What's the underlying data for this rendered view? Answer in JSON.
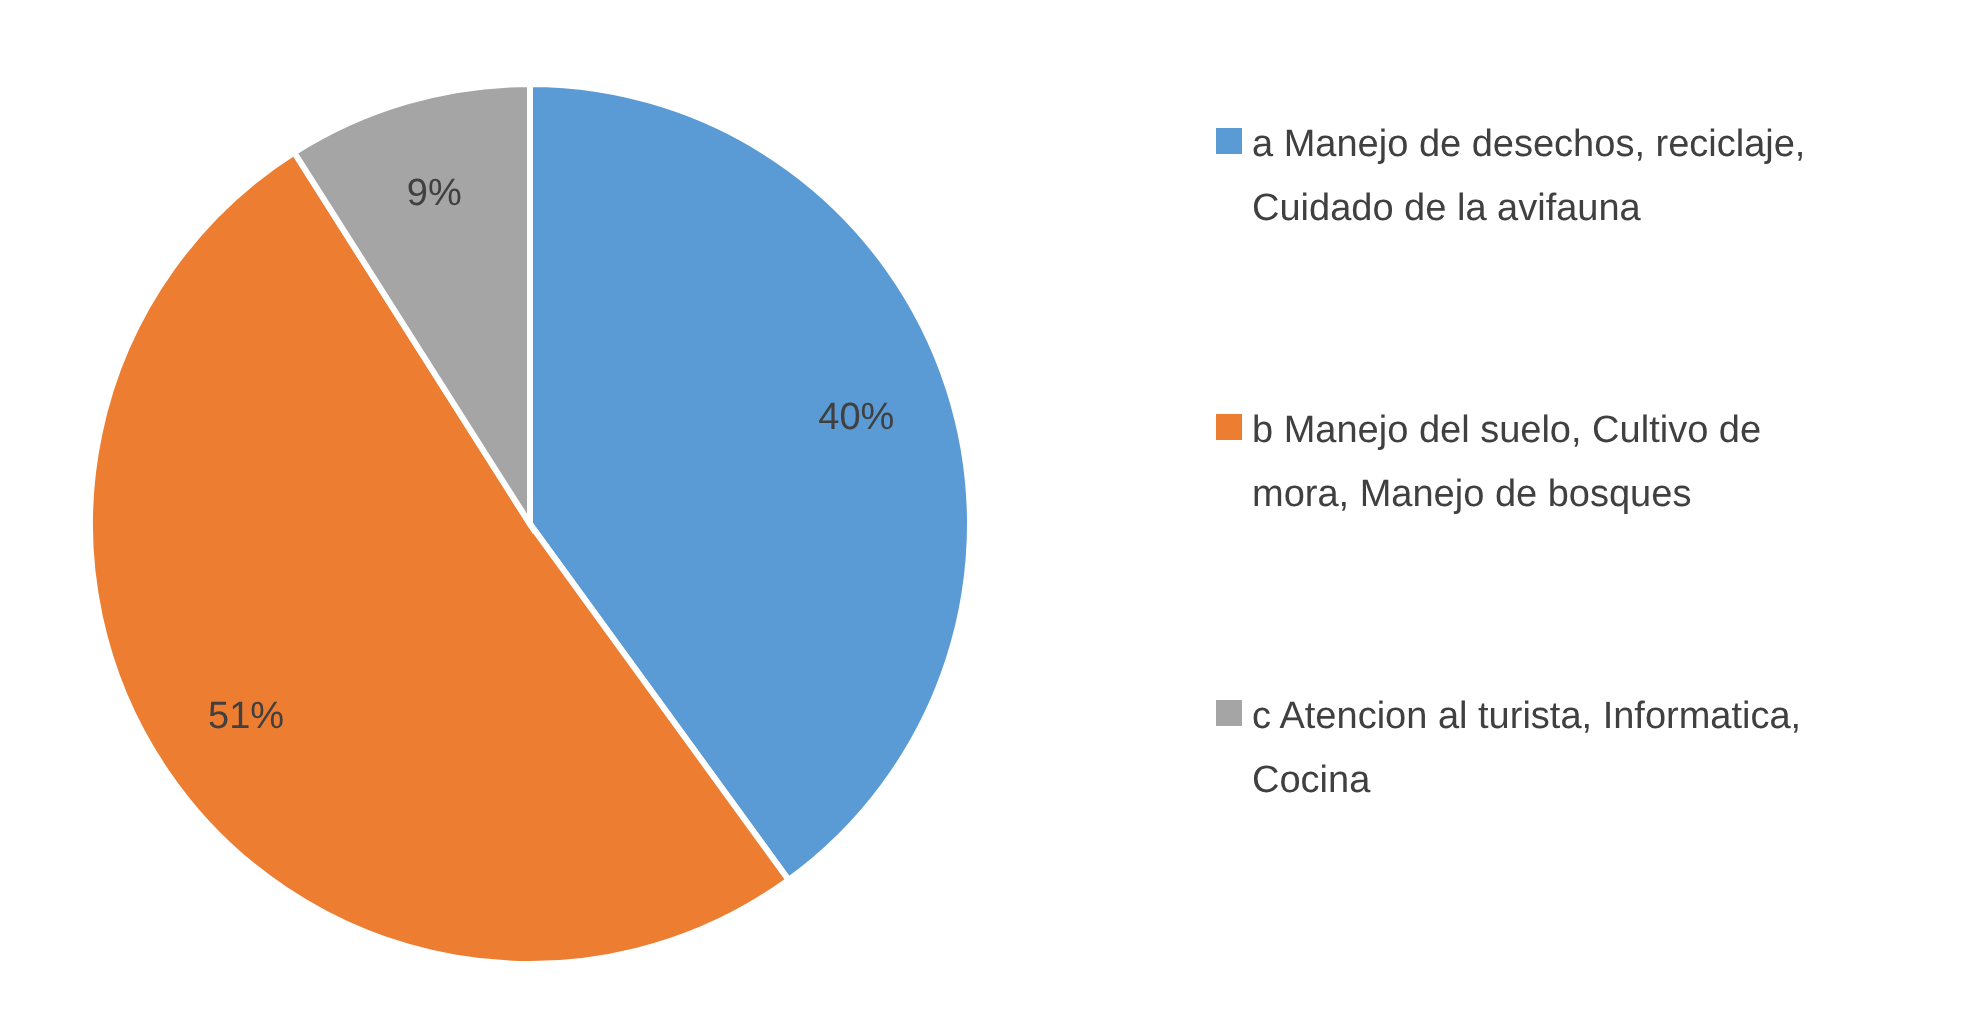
{
  "chart_data": {
    "type": "pie",
    "categories": [
      "a Manejo de desechos, reciclaje, Cuidado de la avifauna",
      "b Manejo del suelo, Cultivo de mora, Manejo de bosques",
      "c Atencion al turista, Informatica, Cocina"
    ],
    "values": [
      40,
      51,
      9
    ],
    "colors": [
      "#5b9bd5",
      "#ed7d31",
      "#a5a5a5"
    ],
    "value_labels": [
      "40%",
      "51%",
      "9%"
    ],
    "legend": "right"
  }
}
